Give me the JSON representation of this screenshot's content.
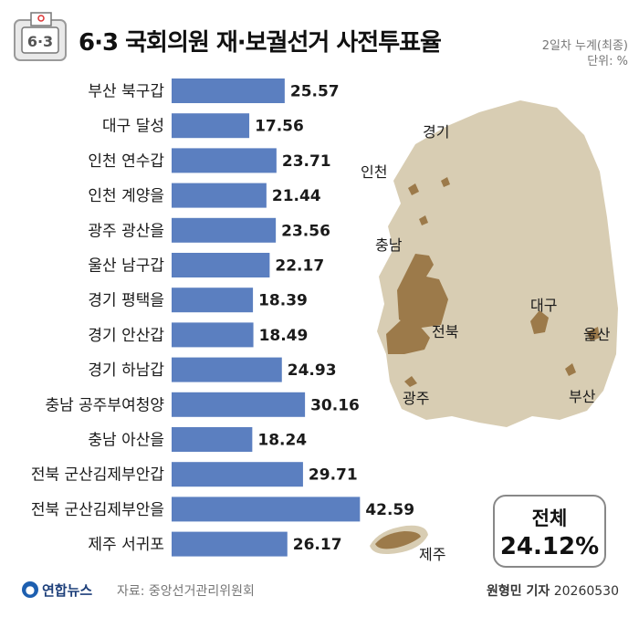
{
  "badge_text": "6·3",
  "title": "6·3 국회의원 재·보궐선거 사전투표율",
  "meta": {
    "line1": "2일차 누계(최종)",
    "line2": "단위: %"
  },
  "chart_data": {
    "type": "bar",
    "orientation": "horizontal",
    "title": "6·3 국회의원 재·보궐선거 사전투표율",
    "categories": [
      "부산 북구갑",
      "대구 달성",
      "인천 연수갑",
      "인천 계양을",
      "광주 광산을",
      "울산 남구갑",
      "경기 평택을",
      "경기 안산갑",
      "경기 하남갑",
      "충남 공주부여청양",
      "충남 아산을",
      "전북 군산김제부안갑",
      "전북 군산김제부안을",
      "제주 서귀포"
    ],
    "values": [
      25.57,
      17.56,
      23.71,
      21.44,
      23.56,
      22.17,
      18.39,
      18.49,
      24.93,
      30.16,
      18.24,
      29.71,
      42.59,
      26.17
    ],
    "value_labels": [
      "25.57",
      "17.56",
      "23.71",
      "21.44",
      "23.56",
      "22.17",
      "18.39",
      "18.49",
      "24.93",
      "30.16",
      "18.24",
      "29.71",
      "42.59",
      "26.17"
    ],
    "unit": "%",
    "bar_color": "#5b7fc0",
    "grid": false
  },
  "map": {
    "land_color": "#d8cdb3",
    "highlight_color": "#9c7a4a",
    "labels": {
      "gyeonggi": "경기",
      "incheon": "인천",
      "chungnam": "충남",
      "jeonbuk": "전북",
      "gwangju": "광주",
      "daegu": "대구",
      "ulsan": "울산",
      "busan": "부산",
      "jeju": "제주"
    }
  },
  "total": {
    "label": "전체",
    "value": "24.12%"
  },
  "footer": {
    "logo_text": "연합뉴스",
    "source": "자료: 중앙선거관리위원회",
    "reporter": "원형민 기자",
    "date": "20260530"
  }
}
